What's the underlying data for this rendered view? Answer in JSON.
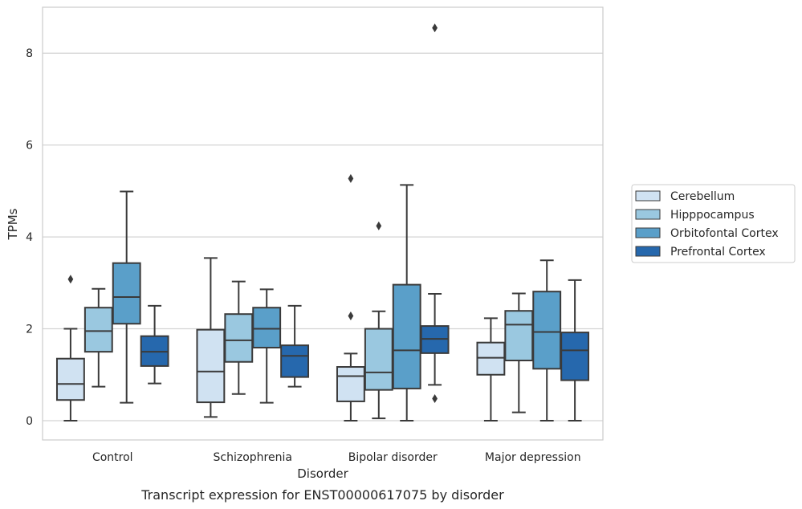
{
  "chart_data": {
    "type": "box",
    "xlabel": "Disorder",
    "ylabel": "TPMs",
    "caption": "Transcript expression for ENST00000617075 by disorder",
    "ylim": [
      -0.42,
      9.0
    ],
    "yticks": [
      0,
      2,
      4,
      6,
      8
    ],
    "grid": "horizontal",
    "legend_position": "right",
    "categories": [
      "Control",
      "Schizophrenia",
      "Bipolar disorder",
      "Major depression"
    ],
    "series": [
      {
        "name": "Cerebellum",
        "color": "#d0e2f2",
        "boxes": [
          {
            "whisker_low": 0.0,
            "q1": 0.45,
            "median": 0.8,
            "q3": 1.35,
            "whisker_high": 2.0,
            "outliers": [
              3.08
            ]
          },
          {
            "whisker_low": 0.08,
            "q1": 0.4,
            "median": 1.07,
            "q3": 1.98,
            "whisker_high": 3.54,
            "outliers": []
          },
          {
            "whisker_low": 0.0,
            "q1": 0.42,
            "median": 0.97,
            "q3": 1.17,
            "whisker_high": 1.46,
            "outliers": [
              2.28,
              5.27
            ]
          },
          {
            "whisker_low": 0.0,
            "q1": 1.0,
            "median": 1.37,
            "q3": 1.7,
            "whisker_high": 2.23,
            "outliers": []
          }
        ]
      },
      {
        "name": "Hipppocampus",
        "color": "#9ac8e0",
        "boxes": [
          {
            "whisker_low": 0.74,
            "q1": 1.5,
            "median": 1.95,
            "q3": 2.46,
            "whisker_high": 2.87,
            "outliers": []
          },
          {
            "whisker_low": 0.58,
            "q1": 1.28,
            "median": 1.75,
            "q3": 2.32,
            "whisker_high": 3.03,
            "outliers": []
          },
          {
            "whisker_low": 0.05,
            "q1": 0.67,
            "median": 1.05,
            "q3": 2.0,
            "whisker_high": 2.38,
            "outliers": [
              4.24
            ]
          },
          {
            "whisker_low": 0.18,
            "q1": 1.31,
            "median": 2.09,
            "q3": 2.39,
            "whisker_high": 2.77,
            "outliers": []
          }
        ]
      },
      {
        "name": "Orbitofontal Cortex",
        "color": "#5a9fc9",
        "boxes": [
          {
            "whisker_low": 0.39,
            "q1": 2.11,
            "median": 2.69,
            "q3": 3.43,
            "whisker_high": 4.99,
            "outliers": []
          },
          {
            "whisker_low": 0.39,
            "q1": 1.59,
            "median": 2.0,
            "q3": 2.46,
            "whisker_high": 2.86,
            "outliers": []
          },
          {
            "whisker_low": 0.0,
            "q1": 0.7,
            "median": 1.53,
            "q3": 2.96,
            "whisker_high": 5.13,
            "outliers": []
          },
          {
            "whisker_low": 0.0,
            "q1": 1.13,
            "median": 1.93,
            "q3": 2.81,
            "whisker_high": 3.49,
            "outliers": []
          }
        ]
      },
      {
        "name": "Prefrontal Cortex",
        "color": "#2668ad",
        "boxes": [
          {
            "whisker_low": 0.81,
            "q1": 1.19,
            "median": 1.5,
            "q3": 1.84,
            "whisker_high": 2.5,
            "outliers": []
          },
          {
            "whisker_low": 0.74,
            "q1": 0.95,
            "median": 1.41,
            "q3": 1.64,
            "whisker_high": 2.5,
            "outliers": []
          },
          {
            "whisker_low": 0.78,
            "q1": 1.47,
            "median": 1.78,
            "q3": 2.06,
            "whisker_high": 2.76,
            "outliers": [
              0.48,
              8.55
            ]
          },
          {
            "whisker_low": 0.0,
            "q1": 0.88,
            "median": 1.53,
            "q3": 1.92,
            "whisker_high": 3.06,
            "outliers": []
          }
        ]
      }
    ]
  }
}
